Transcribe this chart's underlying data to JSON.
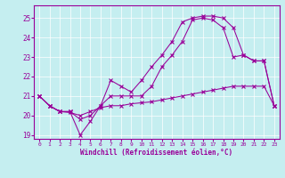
{
  "bg_color": "#c5eef0",
  "line_color": "#990099",
  "xlabel": "Windchill (Refroidissement éolien,°C)",
  "xlim": [
    -0.5,
    23.5
  ],
  "ylim": [
    18.8,
    25.65
  ],
  "yticks": [
    19,
    20,
    21,
    22,
    23,
    24,
    25
  ],
  "xticks": [
    0,
    1,
    2,
    3,
    4,
    5,
    6,
    7,
    8,
    9,
    10,
    11,
    12,
    13,
    14,
    15,
    16,
    17,
    18,
    19,
    20,
    21,
    22,
    23
  ],
  "line1_x": [
    0,
    1,
    2,
    3,
    4,
    5,
    6,
    7,
    8,
    9,
    10,
    11,
    12,
    13,
    14,
    15,
    16,
    17,
    18,
    19,
    20,
    21,
    22,
    23
  ],
  "line1_y": [
    21.0,
    20.5,
    20.2,
    20.15,
    20.0,
    20.2,
    20.4,
    20.5,
    20.5,
    20.6,
    20.65,
    20.7,
    20.8,
    20.9,
    21.0,
    21.1,
    21.2,
    21.3,
    21.4,
    21.5,
    21.5,
    21.5,
    21.5,
    20.5
  ],
  "line2_x": [
    0,
    1,
    2,
    3,
    4,
    5,
    6,
    7,
    8,
    9,
    10,
    11,
    12,
    13,
    14,
    15,
    16,
    17,
    18,
    19,
    20,
    21,
    22,
    23
  ],
  "line2_y": [
    21.0,
    20.5,
    20.2,
    20.2,
    19.8,
    20.0,
    20.5,
    21.0,
    21.0,
    21.0,
    21.0,
    21.5,
    22.5,
    23.1,
    23.8,
    24.9,
    25.0,
    24.9,
    24.5,
    23.0,
    23.1,
    22.8,
    22.8,
    20.5
  ],
  "line3_x": [
    0,
    1,
    2,
    3,
    4,
    5,
    6,
    7,
    8,
    9,
    10,
    11,
    12,
    13,
    14,
    15,
    16,
    17,
    18,
    19,
    20,
    21,
    22,
    23
  ],
  "line3_y": [
    21.0,
    20.5,
    20.2,
    20.2,
    19.0,
    19.7,
    20.5,
    21.8,
    21.5,
    21.2,
    21.8,
    22.5,
    23.1,
    23.8,
    24.8,
    25.0,
    25.1,
    25.1,
    25.0,
    24.5,
    23.1,
    22.8,
    22.8,
    20.5
  ]
}
